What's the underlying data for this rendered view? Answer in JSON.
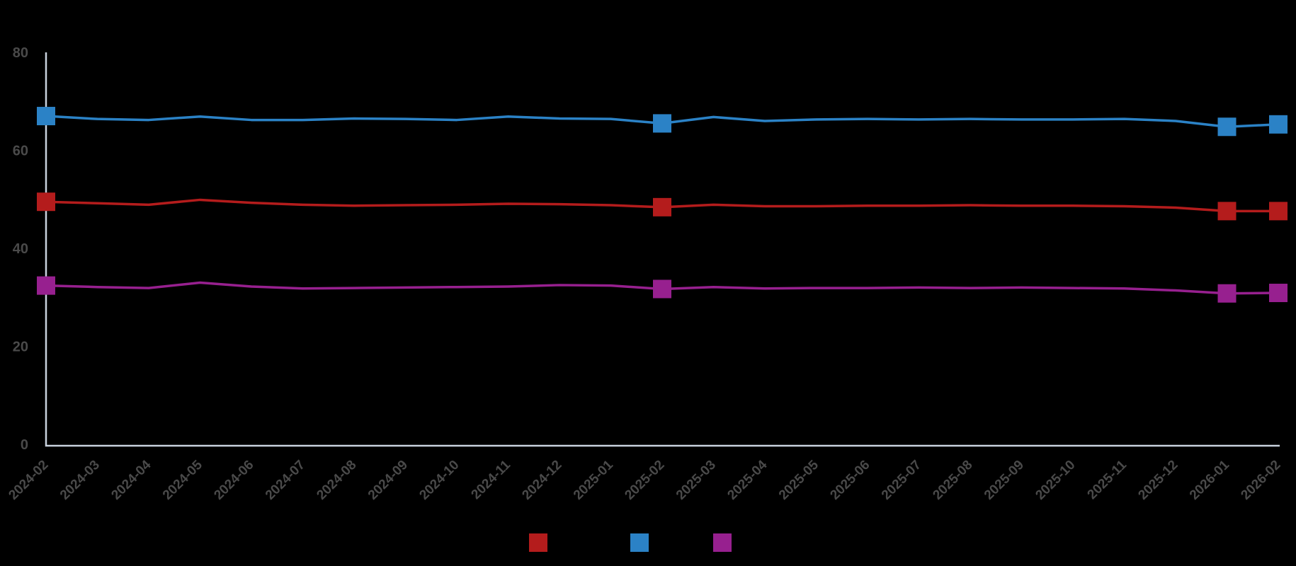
{
  "chart_data": {
    "type": "line",
    "title": "",
    "xlabel": "",
    "ylabel": "",
    "x_categories": [
      "2024-02",
      "2024-03",
      "2024-04",
      "2024-05",
      "2024-06",
      "2024-07",
      "2024-08",
      "2024-09",
      "2024-10",
      "2024-11",
      "2024-12",
      "2025-01",
      "2025-02",
      "2025-03",
      "2025-04",
      "2025-05",
      "2025-06",
      "2025-07",
      "2025-08",
      "2025-09",
      "2025-10",
      "2025-11",
      "2025-12",
      "2026-01",
      "2026-02"
    ],
    "series": [
      {
        "id": "red",
        "label": "",
        "color": "#b41c1c",
        "values": [
          49.5,
          49.2,
          48.9,
          49.9,
          49.3,
          48.9,
          48.7,
          48.8,
          48.9,
          49.1,
          49.0,
          48.8,
          48.4,
          48.9,
          48.6,
          48.6,
          48.7,
          48.7,
          48.8,
          48.7,
          48.7,
          48.6,
          48.3,
          47.6,
          47.6
        ]
      },
      {
        "id": "blue",
        "label": "",
        "color": "#2b82c6",
        "values": [
          67.0,
          66.4,
          66.2,
          66.9,
          66.2,
          66.2,
          66.5,
          66.4,
          66.2,
          66.9,
          66.5,
          66.4,
          65.5,
          66.8,
          66.0,
          66.3,
          66.4,
          66.3,
          66.4,
          66.3,
          66.3,
          66.4,
          66.0,
          64.8,
          65.3
        ]
      },
      {
        "id": "magenta",
        "label": "",
        "color": "#97208f",
        "values": [
          32.4,
          32.1,
          31.9,
          33.0,
          32.2,
          31.8,
          31.9,
          32.0,
          32.1,
          32.2,
          32.5,
          32.4,
          31.7,
          32.1,
          31.8,
          31.9,
          31.9,
          32.0,
          31.9,
          32.0,
          31.9,
          31.8,
          31.4,
          30.8,
          30.9
        ]
      }
    ],
    "marker_indices": [
      0,
      12,
      23,
      24
    ],
    "marker_shape": "square",
    "y_ticks": [
      0,
      20,
      40,
      60,
      80
    ],
    "ylim": [
      0,
      80
    ],
    "grid": false,
    "legend_position": "bottom",
    "legend_labels_visible": false
  },
  "style": {
    "background": "#000000",
    "axis_color": "#c9d2dd",
    "tick_label_color": "#4a4a4a"
  }
}
